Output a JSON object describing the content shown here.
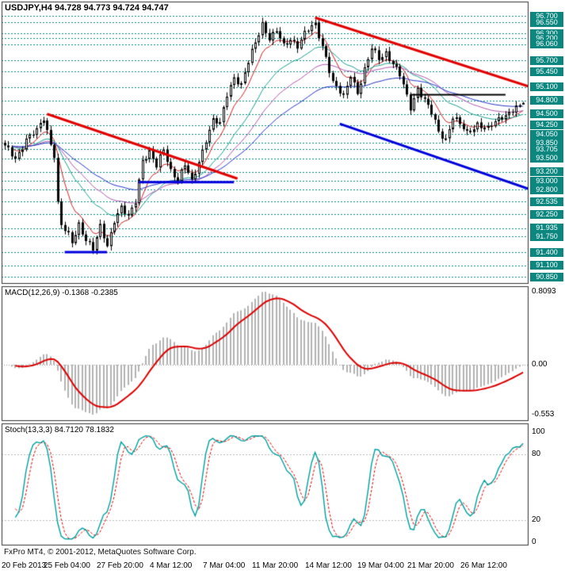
{
  "main_chart": {
    "title": "USDJPY,H4 94.728 94.773 94.724 94.747",
    "symbol": "USDJPY",
    "timeframe": "H4"
  },
  "macd": {
    "label": "MACD(12,26,9) -0.1368 -0.2385",
    "axis_labels": [
      {
        "value": 0.8093,
        "text": "0.8093"
      },
      {
        "value": 0.0,
        "text": "0.00"
      },
      {
        "value": -0.553,
        "text": "-0.553"
      }
    ]
  },
  "stoch": {
    "label": "Stoch(13,3,3) 84.7120 78.1832",
    "axis_labels": [
      {
        "value": 100,
        "text": "100"
      },
      {
        "value": 80,
        "text": "80"
      },
      {
        "value": 20,
        "text": "20"
      },
      {
        "value": 0,
        "text": "0"
      }
    ]
  },
  "footer": {
    "copyright": "FxPro MT4, © 2001-2012, MetaQuotes Software Corp."
  },
  "time_axis": {
    "labels": [
      {
        "text": "20 Feb 2013",
        "index": 0
      },
      {
        "text": "25 Feb 04:00",
        "index": 12
      },
      {
        "text": "27 Feb 20:00",
        "index": 27
      },
      {
        "text": "4 Mar 12:00",
        "index": 42
      },
      {
        "text": "7 Mar 04:00",
        "index": 57
      },
      {
        "text": "11 Mar 20:00",
        "index": 71
      },
      {
        "text": "14 Mar 12:00",
        "index": 86
      },
      {
        "text": "19 Mar 04:00",
        "index": 101
      },
      {
        "text": "21 Mar 20:00",
        "index": 115
      },
      {
        "text": "26 Mar 12:00",
        "index": 130
      }
    ]
  },
  "price_axis": {
    "levels": [
      "96.700",
      "96.550",
      "96.300",
      "96.200",
      "96.060",
      "95.700",
      "95.450",
      "95.100",
      "94.800",
      "94.500",
      "94.250",
      "94.050",
      "93.850",
      "93.705",
      "93.500",
      "93.200",
      "93.000",
      "92.800",
      "92.535",
      "92.250",
      "91.935",
      "91.750",
      "91.400",
      "91.100",
      "90.850"
    ]
  },
  "colors": {
    "badge_bg": "#0b8780",
    "level_line": "#0b8780",
    "candle": "#000000",
    "panel_border": "#333333",
    "macd_histogram": "#b3b3b3",
    "macd_signal": "#dd0000",
    "stoch_main": "#00a0a0",
    "stoch_signal": "#dd0000",
    "trend_red": "#e30000",
    "trend_blue": "#0000dd",
    "trend_black": "#000000"
  },
  "chart_data": [
    {
      "type": "candlestick",
      "title": "USDJPY,H4 94.728 94.773 94.724 94.747",
      "symbol": "USDJPY",
      "timeframe": "H4",
      "current_ohlc": {
        "open": 94.728,
        "high": 94.773,
        "low": 94.724,
        "close": 94.747
      },
      "candle_count": 148,
      "visible_price_range": [
        90.85,
        96.7
      ],
      "close_keypoints": [
        [
          0,
          93.75
        ],
        [
          3,
          93.5
        ],
        [
          6,
          93.95
        ],
        [
          9,
          94.1
        ],
        [
          11,
          94.4
        ],
        [
          13,
          93.85
        ],
        [
          14,
          93.6
        ],
        [
          15,
          92.5
        ],
        [
          16,
          92.0
        ],
        [
          18,
          91.75
        ],
        [
          19,
          91.6
        ],
        [
          21,
          92.05
        ],
        [
          23,
          91.7
        ],
        [
          25,
          91.45
        ],
        [
          27,
          91.95
        ],
        [
          29,
          91.55
        ],
        [
          31,
          92.15
        ],
        [
          33,
          92.4
        ],
        [
          35,
          92.15
        ],
        [
          37,
          92.55
        ],
        [
          39,
          93.5
        ],
        [
          41,
          93.65
        ],
        [
          43,
          93.3
        ],
        [
          45,
          93.7
        ],
        [
          47,
          93.25
        ],
        [
          49,
          93.05
        ],
        [
          51,
          93.35
        ],
        [
          53,
          92.95
        ],
        [
          55,
          93.45
        ],
        [
          57,
          93.95
        ],
        [
          59,
          94.35
        ],
        [
          61,
          94.25
        ],
        [
          63,
          94.95
        ],
        [
          65,
          95.35
        ],
        [
          67,
          95.15
        ],
        [
          69,
          95.65
        ],
        [
          71,
          96.1
        ],
        [
          73,
          96.55
        ],
        [
          75,
          96.2
        ],
        [
          77,
          96.35
        ],
        [
          79,
          96.0
        ],
        [
          81,
          96.2
        ],
        [
          83,
          96.05
        ],
        [
          85,
          96.3
        ],
        [
          88,
          96.5
        ],
        [
          91,
          95.8
        ],
        [
          93,
          95.2
        ],
        [
          96,
          94.85
        ],
        [
          98,
          95.4
        ],
        [
          100,
          95.0
        ],
        [
          104,
          95.95
        ],
        [
          106,
          95.75
        ],
        [
          108,
          95.9
        ],
        [
          112,
          95.35
        ],
        [
          115,
          94.65
        ],
        [
          117,
          95.1
        ],
        [
          121,
          94.5
        ],
        [
          123,
          94.1
        ],
        [
          125,
          93.95
        ],
        [
          127,
          94.45
        ],
        [
          131,
          94.05
        ],
        [
          134,
          94.3
        ],
        [
          137,
          94.15
        ],
        [
          141,
          94.45
        ],
        [
          144,
          94.6
        ],
        [
          147,
          94.747
        ]
      ],
      "horizontal_levels": [
        96.7,
        96.55,
        96.3,
        96.2,
        96.06,
        95.7,
        95.45,
        95.1,
        94.8,
        94.5,
        94.25,
        94.05,
        93.85,
        93.705,
        93.5,
        93.2,
        93.0,
        92.8,
        92.535,
        92.25,
        91.935,
        91.75,
        91.4,
        91.1,
        90.85
      ],
      "trend_lines": [
        {
          "color": "red",
          "width": 3,
          "from": {
            "index": 12,
            "price": 94.5
          },
          "to": {
            "index": 66,
            "price": 93.05
          }
        },
        {
          "color": "red",
          "width": 3,
          "from": {
            "index": 88,
            "price": 96.66
          },
          "to": {
            "index": 150,
            "price": 95.08
          }
        },
        {
          "color": "blue",
          "width": 3,
          "from": {
            "index": 17,
            "price": 91.4
          },
          "to": {
            "index": 29,
            "price": 91.4
          }
        },
        {
          "color": "blue",
          "width": 3,
          "from": {
            "index": 38,
            "price": 92.97
          },
          "to": {
            "index": 65,
            "price": 92.97
          }
        },
        {
          "color": "blue",
          "width": 3,
          "from": {
            "index": 95,
            "price": 94.28
          },
          "to": {
            "index": 150,
            "price": 92.78
          }
        },
        {
          "color": "black",
          "width": 2,
          "from": {
            "index": 115,
            "price": 94.93
          },
          "to": {
            "index": 142,
            "price": 94.93
          }
        }
      ],
      "moving_averages": [
        {
          "period": 8,
          "color": "#cc2222"
        },
        {
          "period": 21,
          "color": "#18a090"
        },
        {
          "period": 34,
          "color": "#b055b0"
        },
        {
          "period": 55,
          "color": "#2233cc"
        }
      ]
    },
    {
      "type": "macd_histogram",
      "params": [
        12,
        26,
        9
      ],
      "current_macd": -0.1368,
      "current_signal": -0.2385,
      "axis": {
        "max": 0.8093,
        "zero": 0.0,
        "min": -0.553
      },
      "derived_from": "candlestick closes (EMA12 - EMA26, signal EMA9)"
    },
    {
      "type": "stochastic",
      "params": [
        13,
        3,
        3
      ],
      "current_k": 84.712,
      "current_d": 78.1832,
      "range": [
        0,
        100
      ],
      "level_lines": [
        80,
        20
      ],
      "derived_from": "candlestick highs/lows/closes"
    }
  ]
}
